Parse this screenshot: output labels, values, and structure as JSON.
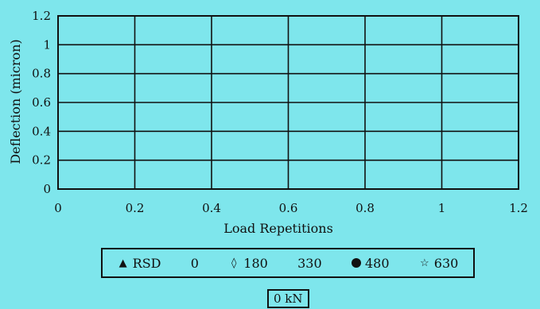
{
  "chart_data": {
    "type": "line",
    "title": "",
    "xlabel": "Load Repetitions",
    "ylabel": "Deflection (micron)",
    "xlim": [
      0,
      1.2
    ],
    "ylim": [
      0,
      1.2
    ],
    "x_ticks": [
      "0",
      "0.2",
      "0.4",
      "0.6",
      "0.8",
      "1",
      "1.2"
    ],
    "y_ticks": [
      "0",
      "0.2",
      "0.4",
      "0.6",
      "0.8",
      "1",
      "1.2"
    ],
    "grid": true,
    "legend_position": "bottom",
    "series": [
      {
        "name": "RSD",
        "marker": "triangle",
        "values": []
      },
      {
        "name": "0",
        "marker": "none",
        "values": []
      },
      {
        "name": "180",
        "marker": "diamond",
        "values": []
      },
      {
        "name": "330",
        "marker": "none",
        "values": []
      },
      {
        "name": "480",
        "marker": "circle",
        "values": []
      },
      {
        "name": "630",
        "marker": "star",
        "values": []
      }
    ]
  },
  "load_label": "0 kN",
  "colors": {
    "background": "#7ee6ec",
    "ink": "#111111"
  }
}
